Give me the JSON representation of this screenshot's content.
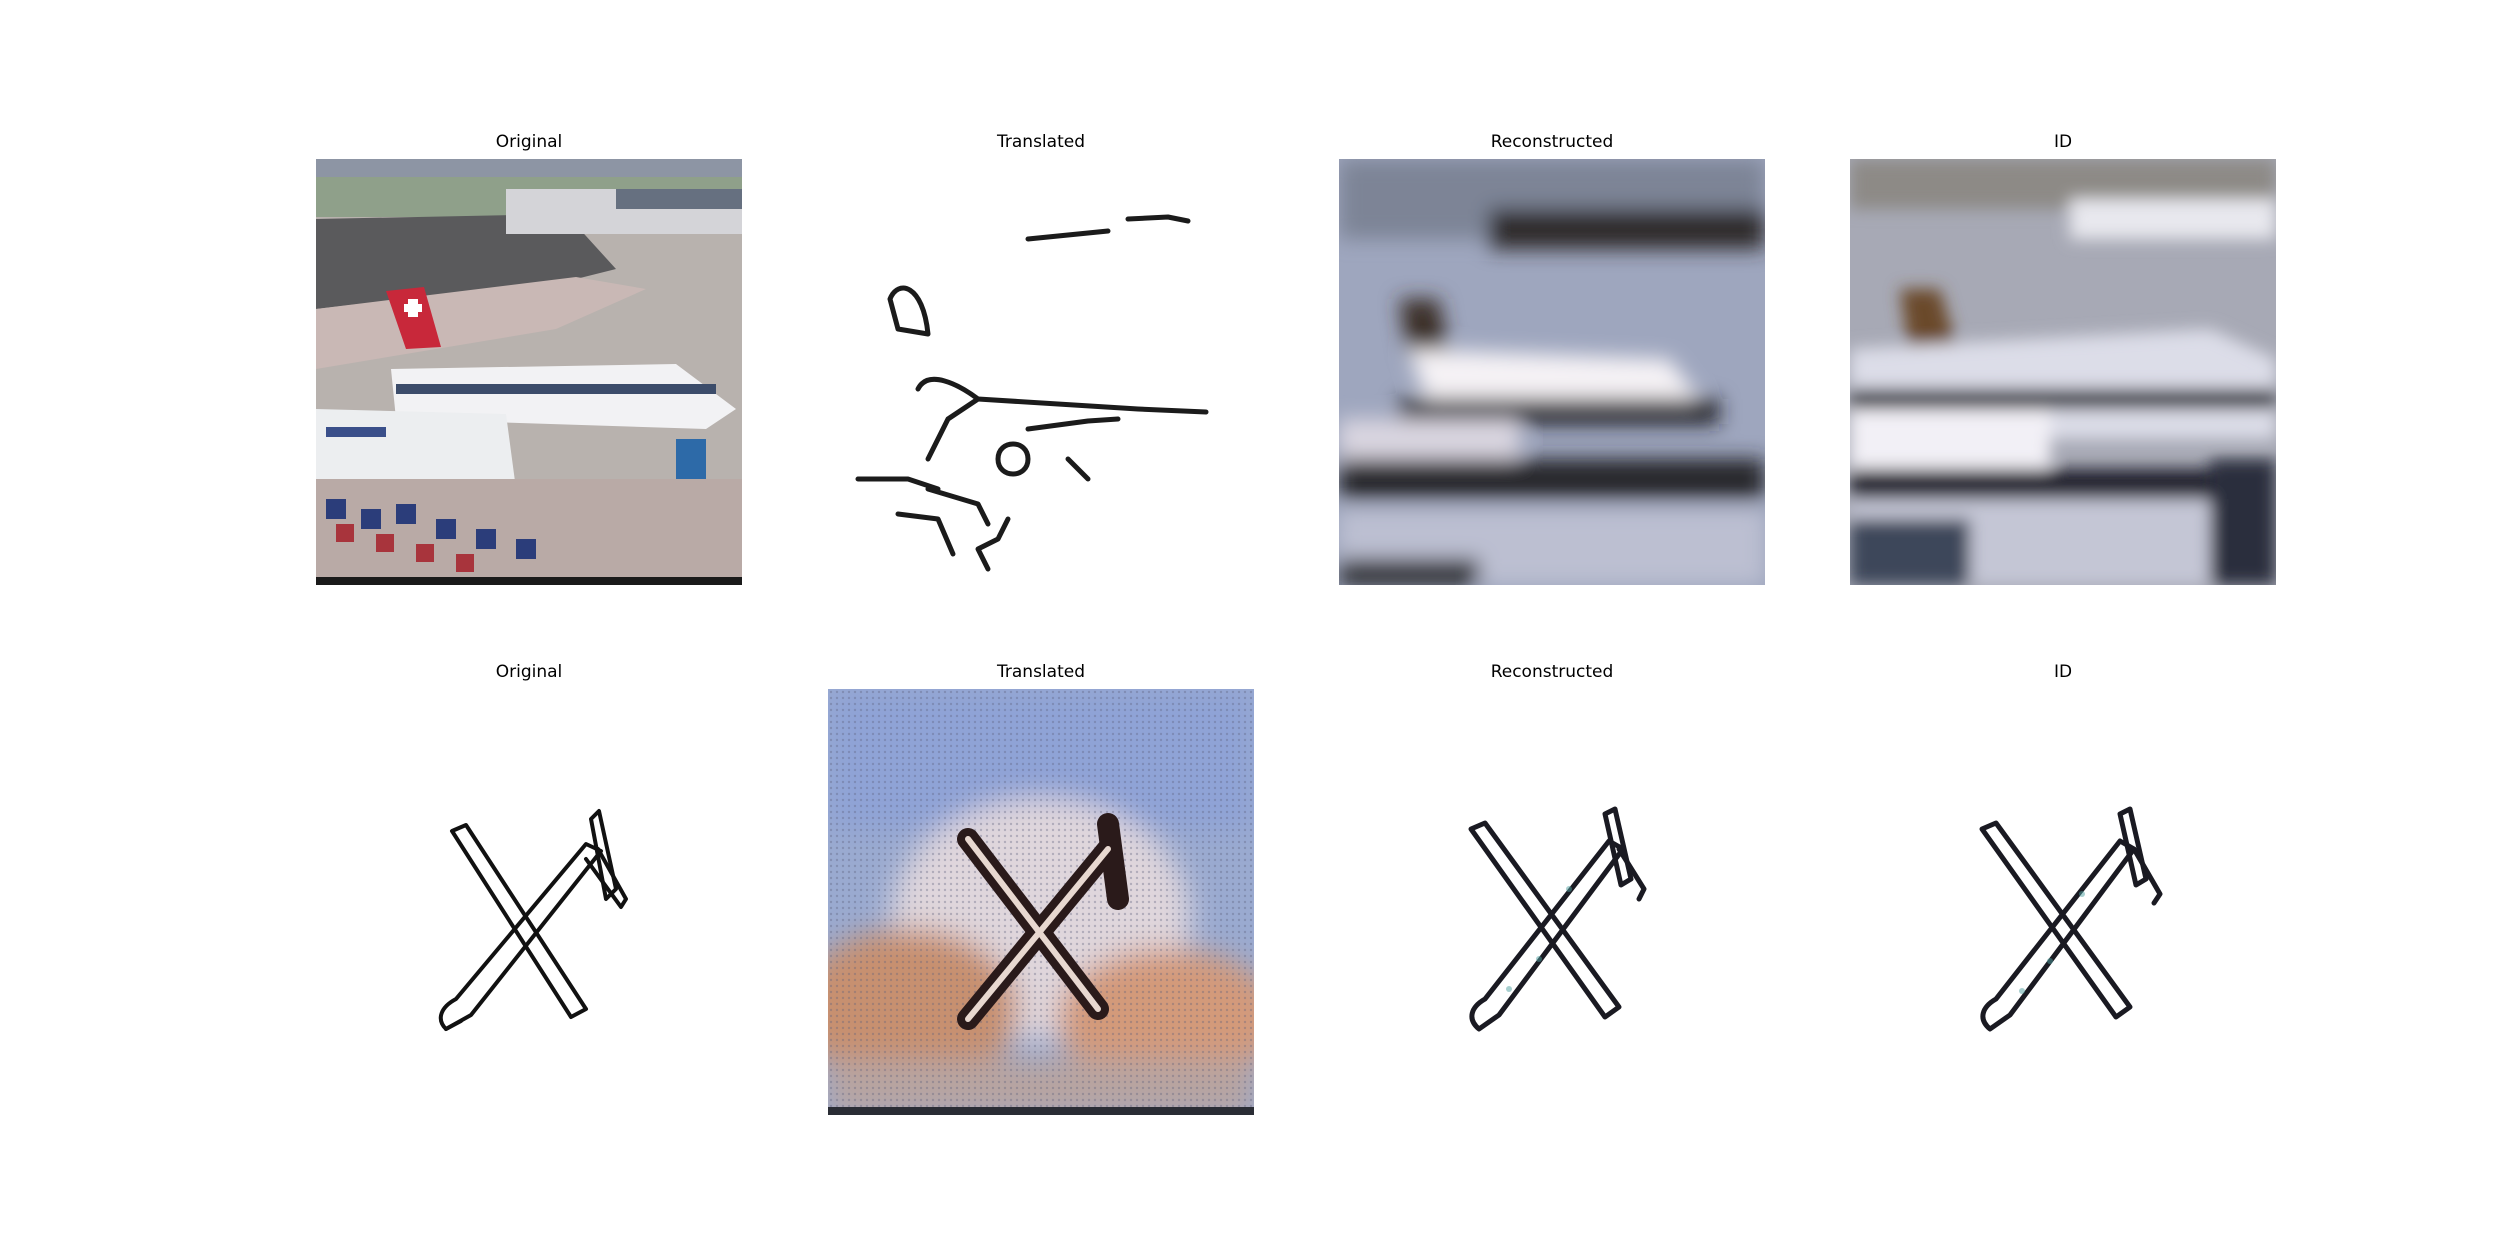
{
  "figure": {
    "row1": {
      "panels": [
        {
          "title": "Original"
        },
        {
          "title": "Translated"
        },
        {
          "title": "Reconstructed"
        },
        {
          "title": "ID"
        }
      ]
    },
    "row2": {
      "panels": [
        {
          "title": "Original"
        },
        {
          "title": "Translated"
        },
        {
          "title": "Reconstructed"
        },
        {
          "title": "ID"
        }
      ]
    }
  }
}
